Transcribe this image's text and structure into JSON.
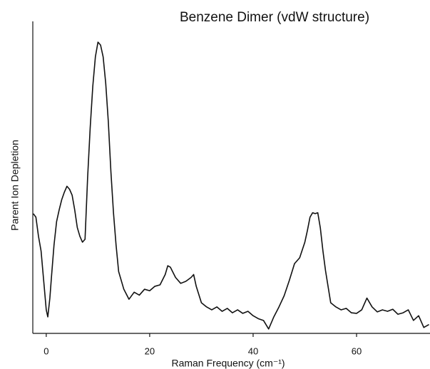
{
  "chart_data": {
    "type": "line",
    "title": "Benzene Dimer (vdW structure)",
    "x_label": "Raman Frequency (cm⁻¹)",
    "y_label": "Parent Ion Depletion",
    "xlim": [
      -2.6,
      74.2
    ],
    "xticks": [
      0,
      20,
      40,
      60
    ],
    "ylim": [
      0,
      100
    ],
    "color": "#111111",
    "x": [
      -2.5,
      -2,
      -1.5,
      -1,
      -0.5,
      0,
      0.3,
      0.7,
      1,
      1.5,
      2,
      2.5,
      3,
      3.5,
      4,
      4.5,
      5,
      5.5,
      6,
      6.5,
      7,
      7.5,
      8,
      8.5,
      9,
      9.5,
      10,
      10.5,
      11,
      11.5,
      12,
      12.5,
      13,
      13.5,
      14,
      15,
      16,
      17,
      18,
      19,
      20,
      21,
      22,
      23,
      23.5,
      24,
      25,
      26,
      27,
      28,
      28.5,
      29,
      30,
      31,
      32,
      33,
      34,
      35,
      36,
      37,
      38,
      39,
      40,
      41,
      42,
      43,
      44,
      45,
      46,
      47,
      48,
      49,
      50,
      50.5,
      51,
      51.5,
      52,
      52.5,
      53,
      53.5,
      54,
      55,
      56,
      57,
      58,
      59,
      60,
      61,
      62,
      63,
      64,
      65,
      66,
      67,
      68,
      69,
      70,
      71,
      72,
      73,
      74
    ],
    "values": [
      40.7,
      39.5,
      33,
      28,
      18,
      8,
      5.6,
      12,
      19,
      30,
      38,
      42,
      45.5,
      48,
      50,
      49,
      47,
      42,
      36,
      33,
      31,
      32,
      53,
      70,
      84,
      94,
      99,
      98,
      94,
      85,
      72,
      55,
      41,
      30,
      21,
      15,
      11.6,
      14,
      13,
      15,
      14.5,
      16,
      16.5,
      20,
      23,
      22.5,
      19,
      17,
      17.7,
      19,
      20,
      16,
      10.4,
      9,
      8,
      9,
      7.5,
      8.5,
      7,
      8,
      6.8,
      7.5,
      6,
      5,
      4.4,
      1.5,
      5.6,
      9,
      12.8,
      18,
      23.7,
      25.7,
      31,
      35,
      39.5,
      41,
      40.7,
      41,
      35.8,
      28,
      21.3,
      10.4,
      9,
      8,
      8.5,
      7,
      6.8,
      8,
      12,
      9,
      7.3,
      8,
      7.5,
      8.2,
      6.5,
      7,
      8,
      4.4,
      6,
      2,
      3
    ]
  }
}
